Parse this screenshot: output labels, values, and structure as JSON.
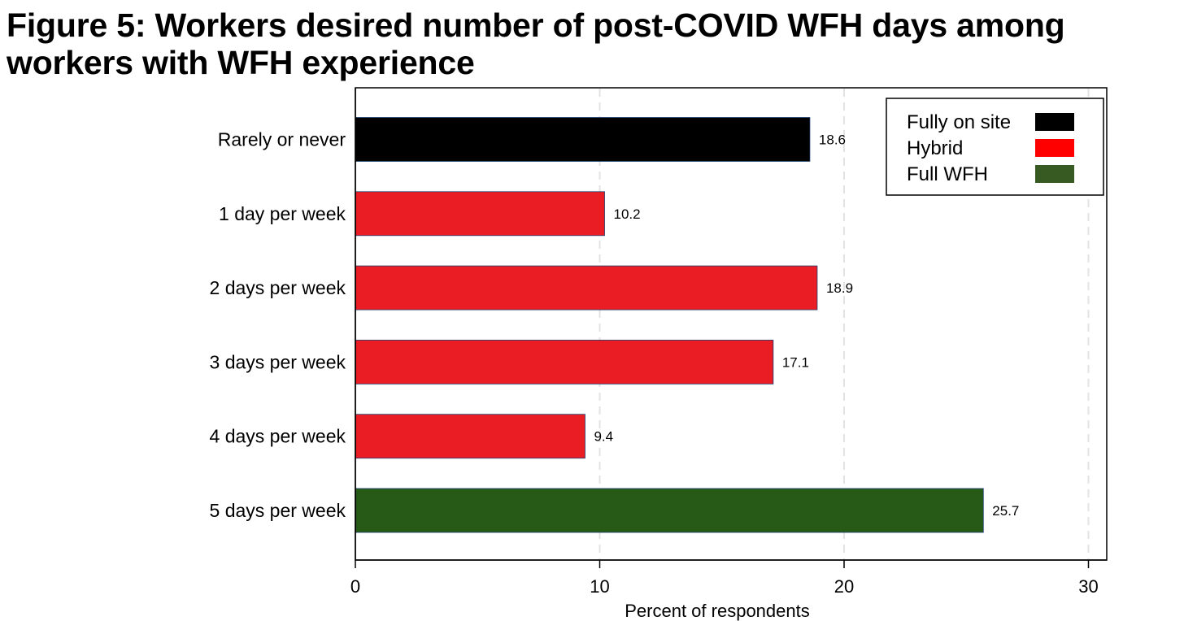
{
  "figure": {
    "title_line1": "Figure 5: Workers desired number of post-COVID WFH days among",
    "title_line2": "workers with WFH experience"
  },
  "colors": {
    "onsite": "#000000",
    "hybrid": "#ea1c24",
    "hybrid_legend": "#ff0000",
    "fullwfh": "#275a16",
    "fullwfh_legend": "#375a23",
    "grid": "#e3e3e3"
  },
  "chart_data": {
    "type": "bar",
    "orientation": "horizontal",
    "title": "Figure 5: Workers desired number of post-COVID WFH days among workers with WFH experience",
    "xlabel": "Percent of respondents",
    "ylabel": "",
    "xlim": [
      0,
      30
    ],
    "xticks": [
      0,
      10,
      20,
      30
    ],
    "grid": "vertical dashed",
    "legend_position": "top-right",
    "categories": [
      "Rarely or never",
      "1 day per week",
      "2 days per week",
      "3 days per week",
      "4 days per week",
      "5 days per week"
    ],
    "values": [
      18.6,
      10.2,
      18.9,
      17.1,
      9.4,
      25.7
    ],
    "value_labels": [
      "18.6",
      "10.2",
      "18.9",
      "17.1",
      "9.4",
      "25.7"
    ],
    "groups": [
      "onsite",
      "hybrid",
      "hybrid",
      "hybrid",
      "hybrid",
      "fullwfh"
    ],
    "legend": [
      {
        "key": "onsite",
        "label": "Fully on site"
      },
      {
        "key": "hybrid",
        "label": "Hybrid"
      },
      {
        "key": "fullwfh",
        "label": "Full WFH"
      }
    ]
  }
}
